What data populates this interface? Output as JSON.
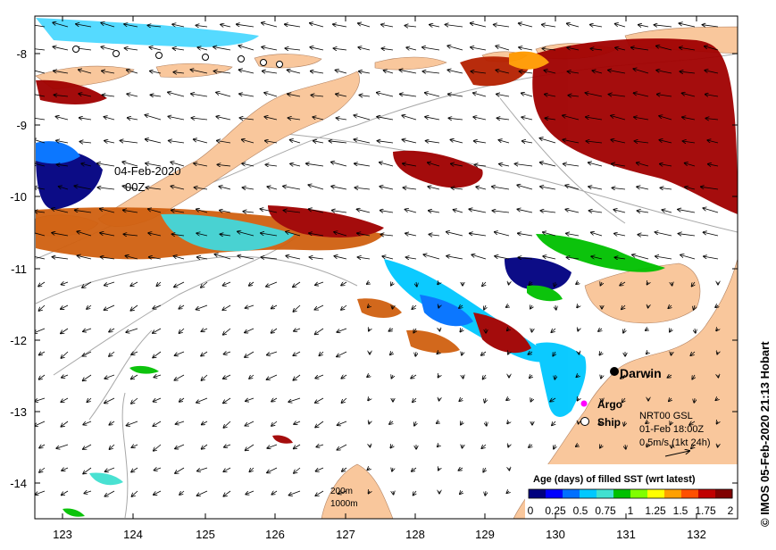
{
  "map": {
    "date_line1": "04-Feb-2020",
    "date_line2": "00Z",
    "x_ticks": [
      "123",
      "124",
      "125",
      "126",
      "127",
      "128",
      "129",
      "130",
      "131",
      "132"
    ],
    "y_ticks": [
      "-8",
      "-9",
      "-10",
      "-11",
      "-12",
      "-13",
      "-14"
    ],
    "places": {
      "darwin": "Darwin"
    },
    "legend_symbols": {
      "argo": "Argo",
      "ship": "Ship"
    },
    "current_info": {
      "line1": "NRT00 GSL",
      "line2": "01-Feb 18:00Z",
      "line3": "0.5m/s (1kt 24h)"
    },
    "contours": {
      "c200": "200m",
      "c1000": "1000m"
    },
    "colorbar": {
      "title": "Age (days) of filled SST (wrt latest)",
      "ticks": [
        "0",
        "0.25",
        "0.5",
        "0.75",
        "1",
        "1.25",
        "1.5",
        "1.75",
        "2"
      ],
      "colors": [
        "#00007f",
        "#0000ff",
        "#0070ff",
        "#00c8ff",
        "#40e0d0",
        "#00c000",
        "#80ff00",
        "#ffff00",
        "#ffa000",
        "#ff5000",
        "#c00000",
        "#800000"
      ]
    },
    "credit": "© IMOS 05-Feb-2020 21:13 Hobart",
    "colors": {
      "land": "#f9c79c",
      "frame": "#000000",
      "argo": "#ff00ff"
    }
  }
}
